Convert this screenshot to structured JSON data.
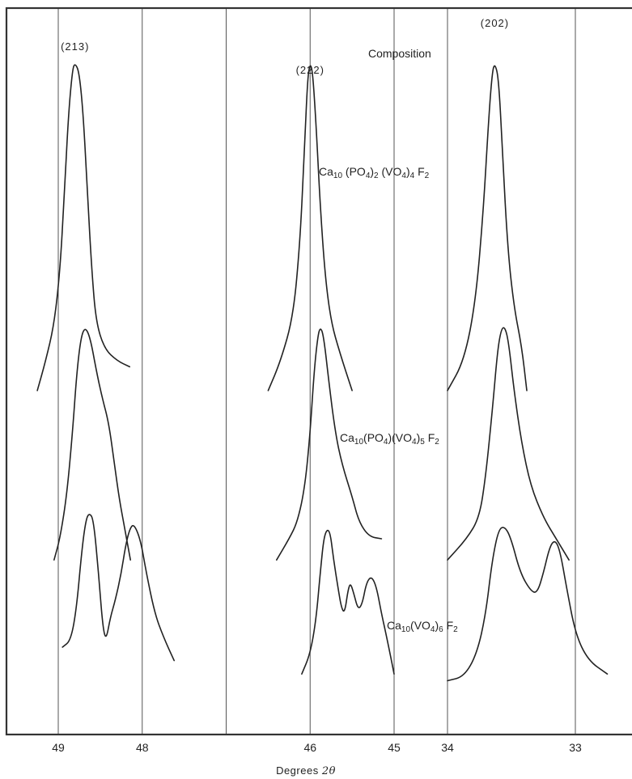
{
  "chart_data": {
    "type": "line",
    "title": "",
    "xlabel": "Degrees",
    "xlabel_symbol": "2θ",
    "x_axis_direction": "decreasing",
    "grid": "vertical lines at each degree",
    "x_panels": [
      {
        "range": [
          49.4,
          45.5
        ],
        "ticks": [
          49,
          48,
          46,
          45
        ],
        "tick_labels": [
          "49",
          "48",
          "46",
          "45"
        ],
        "gridlines": [
          49,
          48,
          47,
          46,
          45
        ]
      },
      {
        "range": [
          34.0,
          32.5
        ],
        "ticks": [
          34,
          33
        ],
        "tick_labels": [
          "34",
          "33"
        ],
        "gridlines": [
          34,
          33
        ]
      }
    ],
    "peak_labels": [
      {
        "text": "(213)",
        "x": 48.8
      },
      {
        "text": "(222)",
        "x": 46.0
      },
      {
        "text": "(202)",
        "x": 33.63
      }
    ],
    "legend_title": "Composition",
    "series": [
      {
        "name": "Ca10(PO4)2(VO4)4F2",
        "label_parts": [
          [
            "Ca",
            ""
          ],
          [
            "10",
            "sub"
          ],
          [
            " (PO",
            ""
          ],
          [
            "4",
            "sub"
          ],
          [
            ")",
            ""
          ],
          [
            "2",
            "sub"
          ],
          [
            " (VO",
            ""
          ],
          [
            "4",
            "sub"
          ],
          [
            ")",
            ""
          ],
          [
            "4",
            "sub"
          ],
          [
            " F",
            ""
          ],
          [
            "2",
            "sub"
          ]
        ],
        "peaks": [
          {
            "label": "(213)",
            "points": [
              [
                49.25,
                -0.1
              ],
              [
                49.15,
                0.0
              ],
              [
                49.05,
                0.12
              ],
              [
                48.98,
                0.3
              ],
              [
                48.93,
                0.55
              ],
              [
                48.88,
                0.82
              ],
              [
                48.83,
                0.98
              ],
              [
                48.8,
                1.0
              ],
              [
                48.75,
                0.97
              ],
              [
                48.7,
                0.82
              ],
              [
                48.65,
                0.55
              ],
              [
                48.6,
                0.3
              ],
              [
                48.55,
                0.13
              ],
              [
                48.45,
                0.04
              ],
              [
                48.3,
                0.0
              ],
              [
                48.15,
                -0.02
              ]
            ]
          },
          {
            "label": "(222)",
            "points": [
              [
                46.5,
                -0.1
              ],
              [
                46.35,
                0.0
              ],
              [
                46.2,
                0.15
              ],
              [
                46.12,
                0.4
              ],
              [
                46.07,
                0.7
              ],
              [
                46.03,
                0.95
              ],
              [
                46.0,
                1.0
              ],
              [
                45.97,
                0.97
              ],
              [
                45.93,
                0.8
              ],
              [
                45.88,
                0.52
              ],
              [
                45.82,
                0.28
              ],
              [
                45.75,
                0.13
              ],
              [
                45.65,
                0.03
              ],
              [
                45.5,
                -0.1
              ]
            ]
          },
          {
            "label": "(202)",
            "points": [
              [
                34.0,
                -0.1
              ],
              [
                33.87,
                0.0
              ],
              [
                33.78,
                0.2
              ],
              [
                33.72,
                0.5
              ],
              [
                33.68,
                0.8
              ],
              [
                33.65,
                0.97
              ],
              [
                33.63,
                1.0
              ],
              [
                33.6,
                0.95
              ],
              [
                33.57,
                0.7
              ],
              [
                33.53,
                0.38
              ],
              [
                33.48,
                0.18
              ],
              [
                33.42,
                0.05
              ],
              [
                33.38,
                -0.1
              ]
            ]
          }
        ]
      },
      {
        "name": "Ca10(PO4)(VO4)5F2",
        "label_parts": [
          [
            "Ca",
            ""
          ],
          [
            "10",
            "sub"
          ],
          [
            "(PO",
            ""
          ],
          [
            "4",
            "sub"
          ],
          [
            ")(VO",
            ""
          ],
          [
            "4",
            "sub"
          ],
          [
            ")",
            ""
          ],
          [
            "5",
            "sub"
          ],
          [
            " F",
            ""
          ],
          [
            "2",
            "sub"
          ]
        ],
        "peaks": [
          {
            "label": "(213)",
            "points": [
              [
                49.05,
                -0.1
              ],
              [
                48.98,
                0.0
              ],
              [
                48.9,
                0.2
              ],
              [
                48.83,
                0.5
              ],
              [
                48.78,
                0.78
              ],
              [
                48.73,
                0.95
              ],
              [
                48.68,
                1.0
              ],
              [
                48.62,
                0.95
              ],
              [
                48.55,
                0.8
              ],
              [
                48.48,
                0.67
              ],
              [
                48.4,
                0.55
              ],
              [
                48.33,
                0.35
              ],
              [
                48.27,
                0.18
              ],
              [
                48.2,
                0.03
              ],
              [
                48.14,
                -0.1
              ]
            ]
          },
          {
            "label": "(222)",
            "points": [
              [
                46.4,
                -0.1
              ],
              [
                46.25,
                0.0
              ],
              [
                46.15,
                0.08
              ],
              [
                46.06,
                0.25
              ],
              [
                46.0,
                0.5
              ],
              [
                45.95,
                0.8
              ],
              [
                45.91,
                0.95
              ],
              [
                45.88,
                1.0
              ],
              [
                45.84,
                0.96
              ],
              [
                45.78,
                0.75
              ],
              [
                45.7,
                0.5
              ],
              [
                45.62,
                0.35
              ],
              [
                45.5,
                0.2
              ],
              [
                45.42,
                0.08
              ],
              [
                45.3,
                0.01
              ],
              [
                45.15,
                0.0
              ]
            ]
          },
          {
            "label": "(202)",
            "points": [
              [
                34.0,
                -0.1
              ],
              [
                33.85,
                0.0
              ],
              [
                33.75,
                0.1
              ],
              [
                33.7,
                0.3
              ],
              [
                33.65,
                0.6
              ],
              [
                33.61,
                0.88
              ],
              [
                33.58,
                0.99
              ],
              [
                33.55,
                1.0
              ],
              [
                33.52,
                0.92
              ],
              [
                33.48,
                0.7
              ],
              [
                33.42,
                0.45
              ],
              [
                33.35,
                0.25
              ],
              [
                33.25,
                0.1
              ],
              [
                33.15,
                0.0
              ],
              [
                33.05,
                -0.1
              ]
            ]
          }
        ]
      },
      {
        "name": "Ca10(VO4)6F2",
        "label_parts": [
          [
            "Ca",
            ""
          ],
          [
            "10",
            "sub"
          ],
          [
            "(VO",
            ""
          ],
          [
            "4",
            "sub"
          ],
          [
            ")",
            ""
          ],
          [
            "6",
            "sub"
          ],
          [
            " F",
            ""
          ],
          [
            "2",
            "sub"
          ]
        ],
        "peaks": [
          {
            "label": "(213)",
            "points": [
              [
                48.95,
                0.0
              ],
              [
                48.85,
                0.05
              ],
              [
                48.78,
                0.3
              ],
              [
                48.72,
                0.72
              ],
              [
                48.67,
                0.95
              ],
              [
                48.63,
                1.0
              ],
              [
                48.58,
                0.95
              ],
              [
                48.52,
                0.55
              ],
              [
                48.47,
                0.15
              ],
              [
                48.43,
                0.05
              ],
              [
                48.38,
                0.22
              ],
              [
                48.32,
                0.35
              ],
              [
                48.25,
                0.55
              ],
              [
                48.2,
                0.75
              ],
              [
                48.15,
                0.88
              ],
              [
                48.1,
                0.92
              ],
              [
                48.02,
                0.8
              ],
              [
                47.95,
                0.55
              ],
              [
                47.85,
                0.25
              ],
              [
                47.75,
                0.08
              ],
              [
                47.62,
                -0.1
              ]
            ]
          },
          {
            "label": "(222)",
            "points": [
              [
                46.1,
                -0.2
              ],
              [
                46.0,
                -0.05
              ],
              [
                45.93,
                0.2
              ],
              [
                45.88,
                0.55
              ],
              [
                45.84,
                0.8
              ],
              [
                45.8,
                0.88
              ],
              [
                45.76,
                0.85
              ],
              [
                45.72,
                0.65
              ],
              [
                45.67,
                0.45
              ],
              [
                45.63,
                0.3
              ],
              [
                45.59,
                0.25
              ],
              [
                45.55,
                0.42
              ],
              [
                45.52,
                0.48
              ],
              [
                45.48,
                0.4
              ],
              [
                45.43,
                0.28
              ],
              [
                45.38,
                0.32
              ],
              [
                45.33,
                0.48
              ],
              [
                45.27,
                0.53
              ],
              [
                45.21,
                0.45
              ],
              [
                45.15,
                0.25
              ],
              [
                45.08,
                0.05
              ],
              [
                45.0,
                -0.2
              ]
            ]
          },
          {
            "label": "(202)",
            "points": [
              [
                34.0,
                -0.25
              ],
              [
                33.87,
                -0.22
              ],
              [
                33.77,
                -0.05
              ],
              [
                33.7,
                0.25
              ],
              [
                33.65,
                0.65
              ],
              [
                33.6,
                0.88
              ],
              [
                33.55,
                0.9
              ],
              [
                33.5,
                0.8
              ],
              [
                33.43,
                0.55
              ],
              [
                33.35,
                0.42
              ],
              [
                33.3,
                0.4
              ],
              [
                33.25,
                0.55
              ],
              [
                33.2,
                0.75
              ],
              [
                33.16,
                0.8
              ],
              [
                33.12,
                0.72
              ],
              [
                33.07,
                0.45
              ],
              [
                33.0,
                0.1
              ],
              [
                32.9,
                -0.1
              ],
              [
                32.75,
                -0.2
              ]
            ]
          }
        ]
      }
    ]
  }
}
